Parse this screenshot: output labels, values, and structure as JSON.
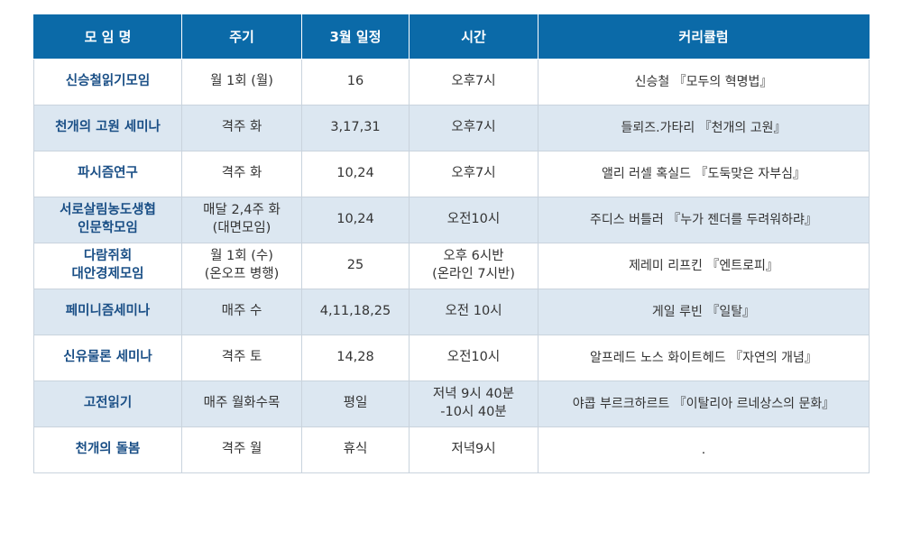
{
  "headers": {
    "name": "모 임 명",
    "cycle": "주기",
    "march_schedule": "3월 일정",
    "time": "시간",
    "curriculum": "커리큘럼"
  },
  "rows": [
    {
      "name": "신승철읽기모임",
      "cycle": "월 1회 (월)",
      "schedule": "16",
      "time": "오후7시",
      "curriculum": "신승철 『모두의 혁명법』"
    },
    {
      "name": "천개의 고원 세미나",
      "cycle": "격주 화",
      "schedule": "3,17,31",
      "time": "오후7시",
      "curriculum": "들뢰즈.가타리 『천개의 고원』"
    },
    {
      "name": "파시즘연구",
      "cycle": "격주 화",
      "schedule": "10,24",
      "time": "오후7시",
      "curriculum": "앨리 러셀 혹실드 『도둑맞은 자부심』"
    },
    {
      "name": "서로살림농도생협\n인문학모임",
      "cycle": "매달 2,4주 화\n(대면모임)",
      "schedule": "10,24",
      "time": "오전10시",
      "curriculum": "주디스 버틀러 『누가 젠더를 두려워하랴』"
    },
    {
      "name": "다람쥐회\n대안경제모임",
      "cycle": "월 1회 (수)\n(온오프 병행)",
      "schedule": "25",
      "time": "오후 6시반\n(온라인 7시반)",
      "curriculum": "제레미 리프킨 『엔트로피』"
    },
    {
      "name": "페미니즘세미나",
      "cycle": "매주 수",
      "schedule": "4,11,18,25",
      "time": "오전 10시",
      "curriculum": "게일 루빈 『일탈』"
    },
    {
      "name": "신유물론 세미나",
      "cycle": "격주 토",
      "schedule": "14,28",
      "time": "오전10시",
      "curriculum": "알프레드 노스 화이트헤드 『자연의 개념』"
    },
    {
      "name": "고전읽기",
      "cycle": "매주 월화수목",
      "schedule": "평일",
      "time": "저녁 9시 40분\n-10시 40분",
      "curriculum": "야콥 부르크하르트 『이탈리아 르네상스의 문화』"
    },
    {
      "name": "천개의 돌봄",
      "cycle": "격주 월",
      "schedule": "휴식",
      "time": "저녁9시",
      "curriculum": "."
    }
  ]
}
